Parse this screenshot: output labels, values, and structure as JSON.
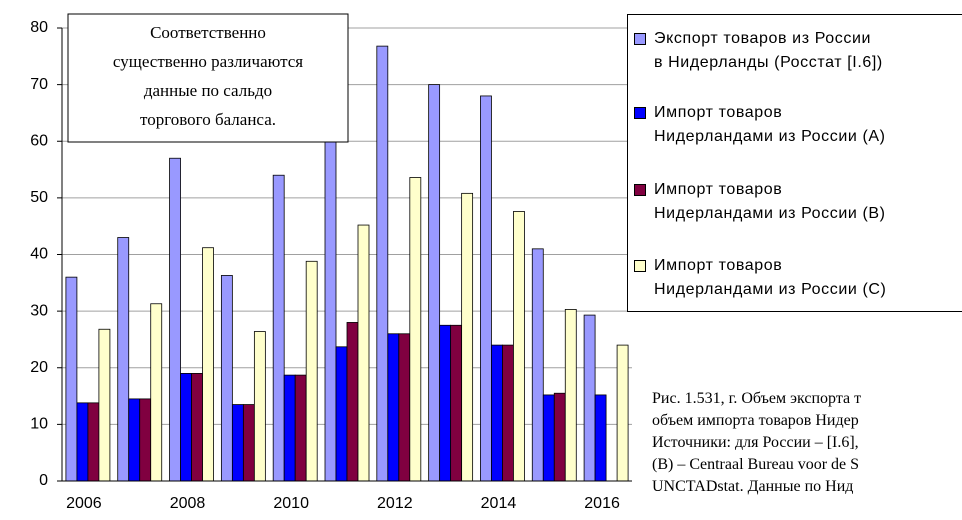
{
  "chart_data": {
    "type": "bar",
    "categories": [
      "2006",
      null,
      "2008",
      null,
      "2010",
      null,
      "2012",
      null,
      "2014",
      null,
      "2016"
    ],
    "series": [
      {
        "name": "Экспорт товаров из России\nв Нидерланды (Росстат [I.6])",
        "color": "#9999ff",
        "values": [
          36,
          43,
          57,
          36.3,
          54,
          61,
          76.8,
          70,
          68,
          41,
          29.3
        ]
      },
      {
        "name": "Импорт товаров\nНидерландами из России (A)",
        "color": "#0000ff",
        "values": [
          13.8,
          14.5,
          19,
          13.5,
          18.7,
          23.7,
          26,
          27.5,
          24,
          15.2,
          15.2
        ]
      },
      {
        "name": "Импорт товаров\nНидерландами из России (B)",
        "color": "#800040",
        "values": [
          13.8,
          14.5,
          19,
          13.5,
          18.7,
          28,
          26,
          27.5,
          24,
          15.5,
          null
        ]
      },
      {
        "name": "Импорт товаров\nНидерландами из России (C)",
        "color": "#ffffcc",
        "values": [
          26.8,
          31.3,
          41.2,
          26.4,
          38.8,
          45.2,
          53.6,
          50.8,
          47.6,
          30.3,
          24
        ]
      }
    ],
    "ylim": [
      0,
      80
    ],
    "yticks": [
      0,
      10,
      20,
      30,
      40,
      50,
      60,
      70,
      80
    ],
    "grid": true,
    "legend": "right",
    "annotation": [
      "Соответственно",
      "существенно различаются",
      "данные по  сальдо",
      "торгового баланса."
    ],
    "caption": [
      "Рис. 1.531, г. Объем экспорта т",
      "объем импорта товаров Нидер",
      "Источники: для России – [I.6],",
      "(B) – Centraal Bureau voor de S",
      "UNCTADstat.  Данные по Нид"
    ]
  }
}
